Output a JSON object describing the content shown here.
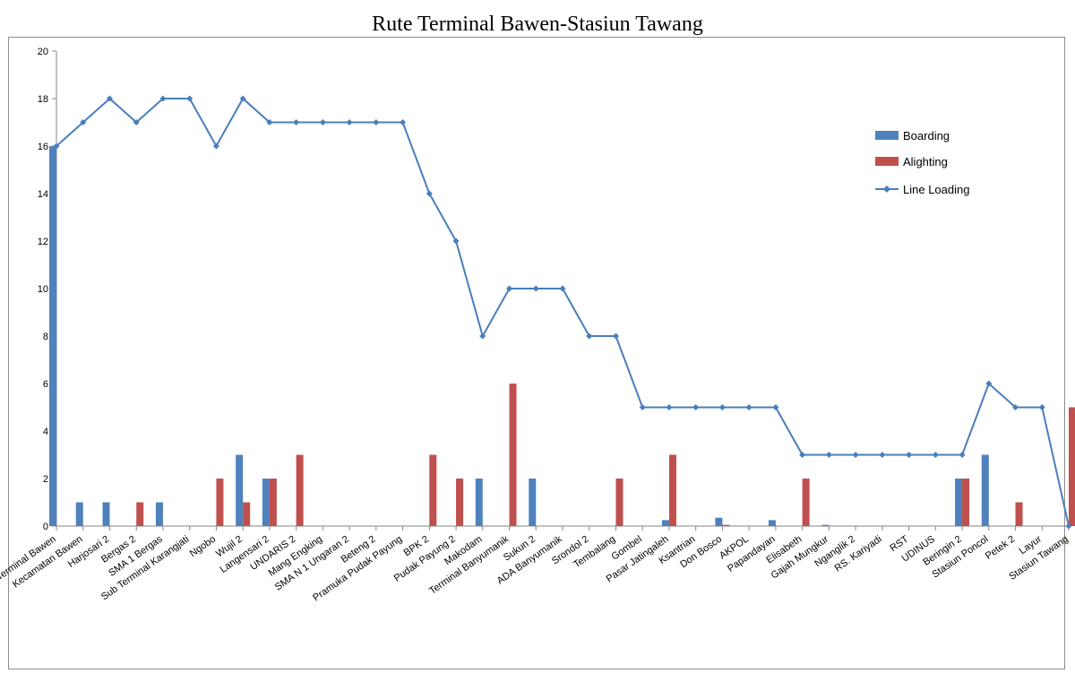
{
  "chart_data": {
    "type": "bar",
    "title": "Rute Terminal Bawen-Stasiun Tawang",
    "xlabel": "",
    "ylabel": "",
    "ylim": [
      0,
      20
    ],
    "yticks": [
      0,
      2,
      4,
      6,
      8,
      10,
      12,
      14,
      16,
      18,
      20
    ],
    "grid": false,
    "legend_position": "right",
    "categories": [
      "Terminal Bawen",
      "Kecamatan Bawen",
      "Harjosari 2",
      "Bergas 2",
      "SMA 1 Bergas",
      "Sub Terminal Karangjati",
      "Ngobo",
      "Wujil 2",
      "Langensari 2",
      "UNDARIS 2",
      "Mang Engking",
      "SMA N 1 Ungaran 2",
      "Beteng 2",
      "Pramuka Pudak Payung",
      "BPK 2",
      "Pudak Payung 2",
      "Makodam",
      "Terminal Banyumanik",
      "Sukun 2",
      "ADA Banyumanik",
      "Srondol 2",
      "Tembalang",
      "Gombel",
      "Pasar Jatingaleh",
      "Ksantrian",
      "Don Bosco",
      "AKPOL",
      "Papandayan",
      "Elisabeth",
      "Gajah Mungkur",
      "Nganglik 2",
      "RS. Kariyadi",
      "RST",
      "UDINUS",
      "Beringin 2",
      "Stasiun Poncol",
      "Petek 2",
      "Layur",
      "Stasiun Tawang"
    ],
    "series": [
      {
        "name": "Boarding",
        "kind": "bar",
        "color": "#4f81bd",
        "values": [
          16,
          1,
          1,
          0,
          1,
          0,
          0,
          3,
          2,
          0,
          0,
          0,
          0,
          0,
          0,
          0,
          2,
          0,
          2,
          0,
          0,
          0,
          0,
          0.25,
          0,
          0.35,
          0,
          0.25,
          0,
          0.05,
          0,
          0,
          0,
          0,
          2,
          3,
          0,
          0,
          0
        ]
      },
      {
        "name": "Alighting",
        "kind": "bar",
        "color": "#c0504d",
        "values": [
          0,
          0,
          0,
          1,
          0,
          0,
          2,
          1,
          2,
          3,
          0,
          0,
          0,
          0,
          3,
          2,
          0,
          6,
          0,
          0,
          0,
          2,
          0,
          3,
          0,
          0.05,
          0,
          0,
          2,
          0,
          0,
          0,
          0,
          0,
          2,
          0,
          1,
          0,
          5
        ]
      },
      {
        "name": "Line Loading",
        "kind": "line",
        "color": "#4a7ebb",
        "values": [
          16,
          17,
          18,
          17,
          18,
          18,
          16,
          18,
          17,
          17,
          17,
          17,
          17,
          17,
          14,
          12,
          8,
          10,
          10,
          10,
          8,
          8,
          5,
          5,
          5,
          5,
          5,
          5,
          3,
          3,
          3,
          3,
          3,
          3,
          3,
          6,
          5,
          5,
          0
        ]
      }
    ]
  }
}
